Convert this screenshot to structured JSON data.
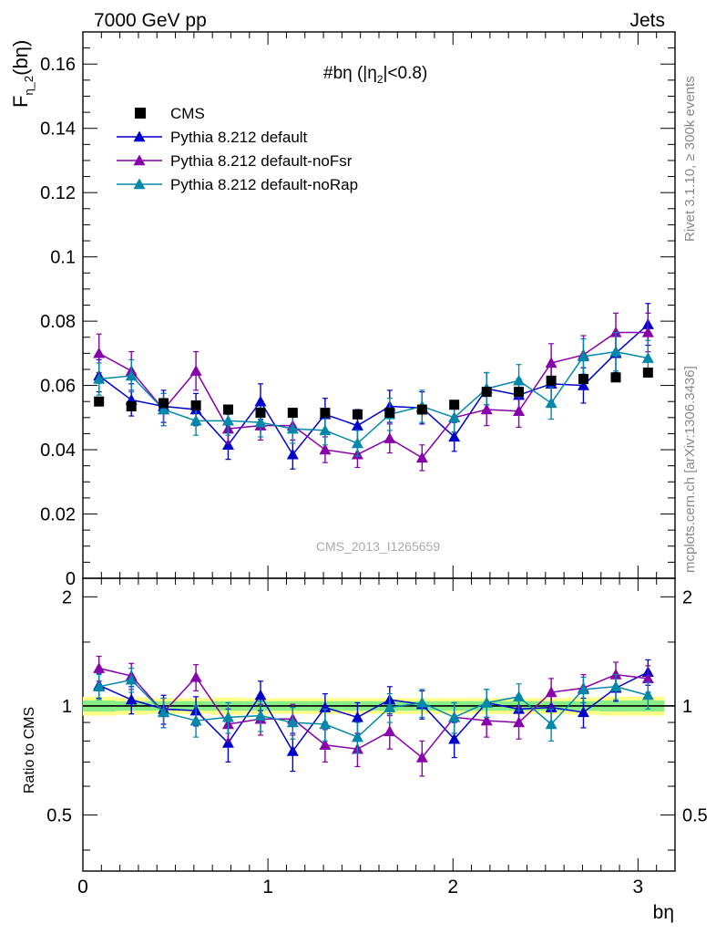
{
  "header": {
    "energy_label": "7000 GeV pp",
    "process_label": "Jets"
  },
  "side_labels": {
    "rivet": "Rivet 3.1.10, ≥ 300k events",
    "mcplots": "mcplots.cern.ch [arXiv:1306.3436]"
  },
  "chart_data": {
    "type": "scatter",
    "title": "#bη (|η",
    "title_sub": "2",
    "title_end": "|<0.8)",
    "watermark": "CMS_2013_I1265659",
    "ylabel_main": "F",
    "ylabel_main_sub": "η_2",
    "ylabel_main_end": "(bη)",
    "ylabel_ratio": "Ratio to CMS",
    "xlabel": "bη",
    "xlim": [
      0,
      3.2
    ],
    "ylim": [
      0,
      0.17
    ],
    "ratio_ylim": [
      0.35,
      2.25
    ],
    "x_ticks": [
      "0",
      "1",
      "2",
      "3"
    ],
    "y_ticks": [
      "0",
      "0.02",
      "0.04",
      "0.06",
      "0.08",
      "0.1",
      "0.12",
      "0.14",
      "0.16"
    ],
    "ratio_ticks": [
      "0.5",
      "1",
      "2"
    ],
    "legend_position": "top-left",
    "x": [
      0.087,
      0.262,
      0.436,
      0.611,
      0.785,
      0.96,
      1.134,
      1.309,
      1.484,
      1.658,
      1.833,
      2.007,
      2.182,
      2.356,
      2.531,
      2.705,
      2.88,
      3.054
    ],
    "series": [
      {
        "name": "CMS",
        "color": "#000000",
        "marker": "square",
        "values": [
          0.055,
          0.0535,
          0.0545,
          0.0538,
          0.0525,
          0.0515,
          0.0515,
          0.0515,
          0.051,
          0.0515,
          0.0525,
          0.054,
          0.058,
          0.058,
          0.0615,
          0.062,
          0.0625,
          0.064
        ],
        "errors": [
          0.0012,
          0.0012,
          0.0012,
          0.0012,
          0.0012,
          0.0012,
          0.0012,
          0.0012,
          0.0012,
          0.0012,
          0.0012,
          0.0012,
          0.0012,
          0.0012,
          0.0012,
          0.0012,
          0.0012,
          0.0012
        ]
      },
      {
        "name": "Pythia 8.212 default",
        "color": "#0000cc",
        "marker": "triangle",
        "values": [
          0.063,
          0.0555,
          0.0535,
          0.0525,
          0.0415,
          0.055,
          0.0385,
          0.051,
          0.0475,
          0.0535,
          0.053,
          0.044,
          0.059,
          0.057,
          0.0605,
          0.06,
          0.07,
          0.079
        ],
        "errors": [
          0.005,
          0.005,
          0.005,
          0.005,
          0.0045,
          0.0055,
          0.0045,
          0.005,
          0.005,
          0.005,
          0.005,
          0.0045,
          0.005,
          0.005,
          0.0055,
          0.0055,
          0.006,
          0.0065
        ],
        "ratio": [
          1.14,
          1.04,
          0.98,
          0.97,
          0.79,
          1.07,
          0.75,
          0.99,
          0.93,
          1.04,
          1.01,
          0.81,
          1.02,
          0.98,
          0.99,
          0.96,
          1.12,
          1.24
        ],
        "ratio_err": [
          0.09,
          0.09,
          0.09,
          0.09,
          0.09,
          0.1,
          0.09,
          0.09,
          0.09,
          0.09,
          0.09,
          0.09,
          0.09,
          0.09,
          0.09,
          0.09,
          0.09,
          0.1
        ]
      },
      {
        "name": "Pythia 8.212 default-noFsr",
        "color": "#8800aa",
        "marker": "triangle",
        "values": [
          0.07,
          0.0645,
          0.0525,
          0.0645,
          0.0465,
          0.0475,
          0.0475,
          0.04,
          0.0385,
          0.0435,
          0.0375,
          0.05,
          0.0525,
          0.052,
          0.067,
          0.0695,
          0.0765,
          0.0765
        ],
        "errors": [
          0.006,
          0.006,
          0.005,
          0.006,
          0.0045,
          0.0045,
          0.0045,
          0.004,
          0.004,
          0.0045,
          0.004,
          0.0045,
          0.005,
          0.005,
          0.006,
          0.006,
          0.006,
          0.006
        ],
        "ratio": [
          1.27,
          1.21,
          0.96,
          1.2,
          0.89,
          0.92,
          0.92,
          0.78,
          0.76,
          0.85,
          0.72,
          0.93,
          0.91,
          0.9,
          1.09,
          1.12,
          1.22,
          1.19
        ],
        "ratio_err": [
          0.1,
          0.1,
          0.09,
          0.1,
          0.09,
          0.09,
          0.09,
          0.08,
          0.08,
          0.09,
          0.08,
          0.09,
          0.09,
          0.09,
          0.1,
          0.1,
          0.1,
          0.1
        ]
      },
      {
        "name": "Pythia 8.212 default-noRap",
        "color": "#0088aa",
        "marker": "triangle",
        "values": [
          0.062,
          0.063,
          0.0525,
          0.049,
          0.049,
          0.0485,
          0.0465,
          0.046,
          0.042,
          0.051,
          0.0535,
          0.05,
          0.059,
          0.0615,
          0.0545,
          0.069,
          0.0705,
          0.0685
        ],
        "errors": [
          0.005,
          0.005,
          0.005,
          0.0045,
          0.0045,
          0.0045,
          0.0045,
          0.0045,
          0.004,
          0.005,
          0.005,
          0.0045,
          0.005,
          0.005,
          0.005,
          0.0055,
          0.006,
          0.0055
        ],
        "ratio": [
          1.13,
          1.18,
          0.96,
          0.91,
          0.93,
          0.94,
          0.9,
          0.89,
          0.82,
          0.99,
          1.02,
          0.93,
          1.02,
          1.06,
          0.89,
          1.11,
          1.13,
          1.07
        ],
        "ratio_err": [
          0.09,
          0.09,
          0.09,
          0.09,
          0.09,
          0.09,
          0.09,
          0.09,
          0.08,
          0.09,
          0.09,
          0.09,
          0.09,
          0.09,
          0.09,
          0.09,
          0.09,
          0.09
        ]
      }
    ],
    "band_inner_color": "#88ee88",
    "band_outer_color": "#ffff88"
  }
}
